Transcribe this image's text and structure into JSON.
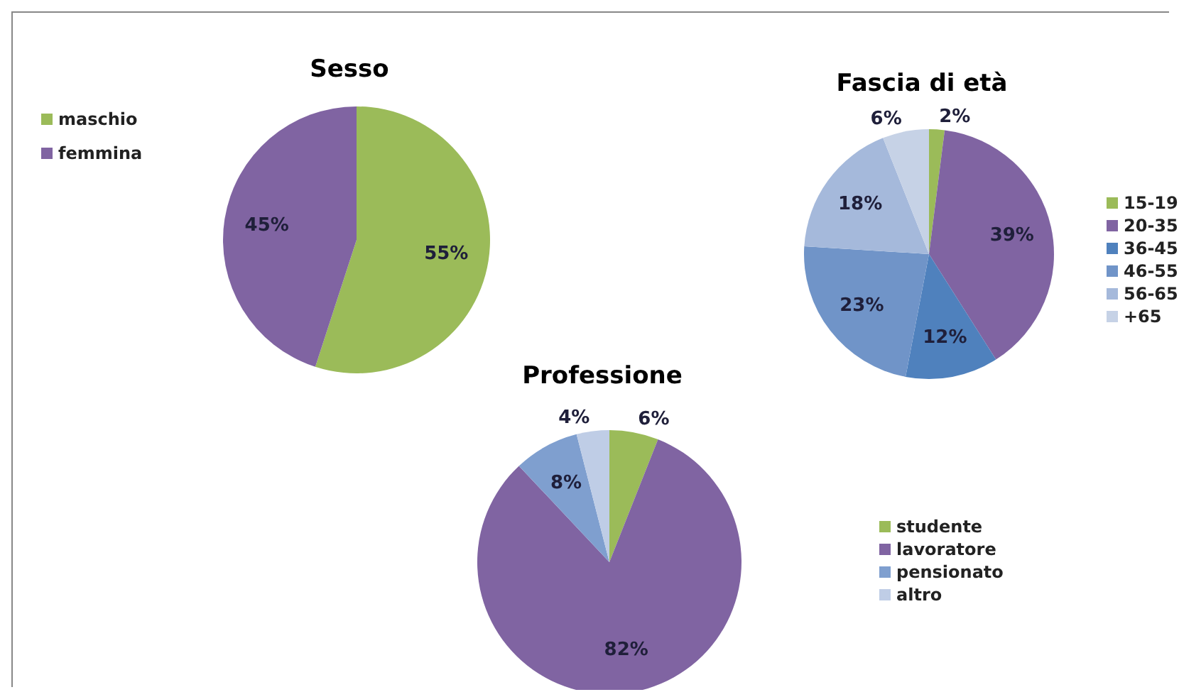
{
  "chart_data": [
    {
      "type": "pie",
      "title": "Sesso",
      "categories": [
        "maschio",
        "femmina"
      ],
      "values": [
        55,
        45
      ],
      "colors": [
        "#9bbb59",
        "#8064a2"
      ],
      "value_labels": [
        "55%",
        "45%"
      ],
      "legend": "left"
    },
    {
      "type": "pie",
      "title": "Fascia di età",
      "categories": [
        "15-19",
        "20-35",
        "36-45",
        "46-55",
        "56-65",
        "+65"
      ],
      "values": [
        2,
        39,
        12,
        23,
        18,
        6
      ],
      "colors": [
        "#9bbb59",
        "#8064a2",
        "#4f81bd",
        "#7094c8",
        "#a5b9db",
        "#c6d2e6"
      ],
      "value_labels": [
        "2%",
        "39%",
        "12%",
        "23%",
        "18%",
        "6%"
      ],
      "legend": "right"
    },
    {
      "type": "pie",
      "title": "Professione",
      "categories": [
        "studente",
        "lavoratore",
        "pensionato",
        "altro"
      ],
      "values": [
        6,
        82,
        8,
        4
      ],
      "colors": [
        "#9bbb59",
        "#8064a2",
        "#7f9fcf",
        "#bfcde6"
      ],
      "value_labels": [
        "6%",
        "82%",
        "8%",
        "4%"
      ],
      "legend": "right"
    }
  ]
}
